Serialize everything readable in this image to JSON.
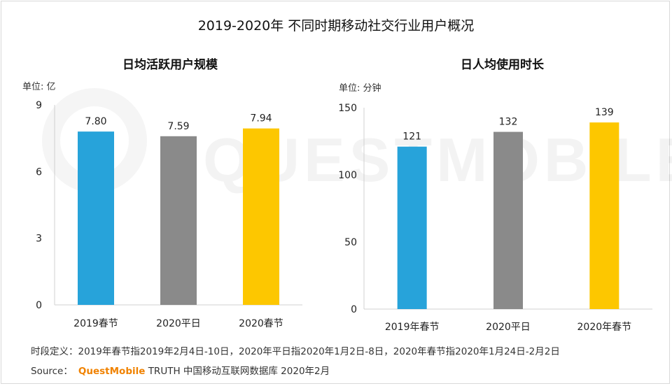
{
  "title": "2019-2020年 不同时期移动社交行业用户概况",
  "watermark": "QUESTMOBILE",
  "colors": {
    "blue": "#27a3da",
    "gray": "#8a8a8a",
    "yellow": "#fdc700",
    "brand": "#f08200"
  },
  "chart_data": [
    {
      "type": "bar",
      "title": "日均活跃用户规模",
      "unit": "单位: 亿",
      "categories": [
        "2019春节",
        "2020平日",
        "2020春节"
      ],
      "values": [
        7.8,
        7.59,
        7.94
      ],
      "value_labels": [
        "7.80",
        "7.59",
        "7.94"
      ],
      "bar_colors": [
        "#27a3da",
        "#8a8a8a",
        "#fdc700"
      ],
      "ylim": [
        0,
        9
      ],
      "yticks": [
        0,
        3,
        6,
        9
      ],
      "xlabel": "",
      "ylabel": ""
    },
    {
      "type": "bar",
      "title": "日人均使用时长",
      "unit": "单位: 分钟",
      "categories": [
        "2019年春节",
        "2020平日",
        "2020年春节"
      ],
      "values": [
        121,
        132,
        139
      ],
      "value_labels": [
        "121",
        "132",
        "139"
      ],
      "bar_colors": [
        "#27a3da",
        "#8a8a8a",
        "#fdc700"
      ],
      "ylim": [
        0,
        150
      ],
      "yticks": [
        0,
        50,
        100,
        150
      ],
      "xlabel": "",
      "ylabel": ""
    }
  ],
  "footer": {
    "note": "时段定义：2019年春节指2019年2月4日-10日，2020年平日指2020年1月2日-8日，2020年春节指2020年1月24日-2月2日",
    "source_label": "Source：",
    "brand": "QuestMobile",
    "source_text": "TRUTH 中国移动互联网数据库 2020年2月"
  }
}
